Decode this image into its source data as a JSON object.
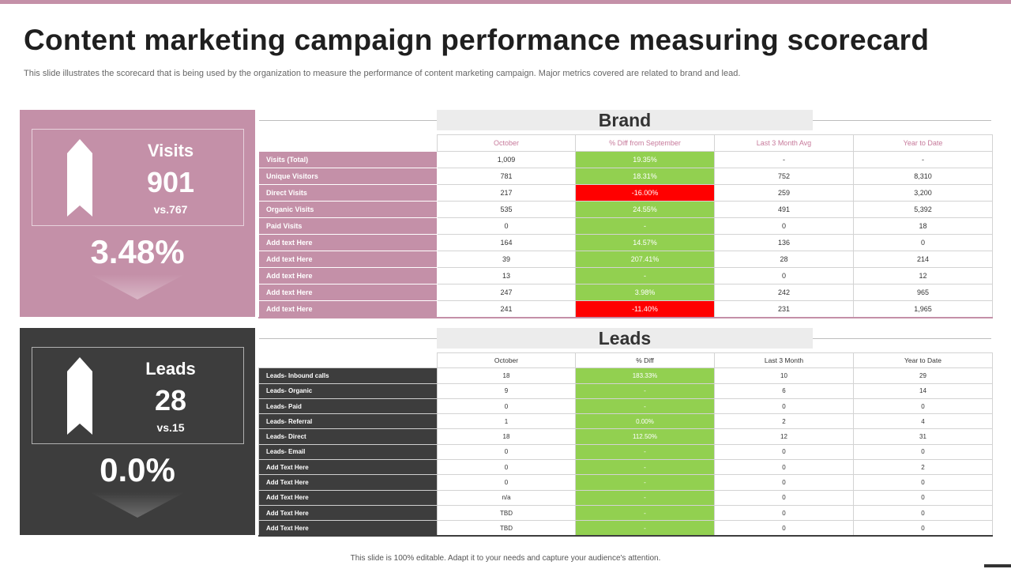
{
  "title": "Content marketing campaign performance measuring scorecard",
  "subtitle": "This slide illustrates the scorecard that is being used by the organization to measure the performance of content marketing campaign. Major metrics covered are related to brand and lead.",
  "footer": "This slide is 100% editable. Adapt it to your needs and capture your audience's attention.",
  "colors": {
    "brand_panel": "#c490a8",
    "leads_panel": "#3d3d3d",
    "positive": "#92d050",
    "negative": "#ff0000"
  },
  "brand_kpi": {
    "label": "Visits",
    "value": "901",
    "comparison": "vs.767",
    "change": "3.48%",
    "icon": "up-arrow-ribbon-icon"
  },
  "leads_kpi": {
    "label": "Leads",
    "value": "28",
    "comparison": "vs.15",
    "change": "0.0%",
    "icon": "up-arrow-ribbon-icon"
  },
  "brand": {
    "title": "Brand",
    "columns": [
      "October",
      "% Diff from September",
      "Last 3 Month Avg",
      "Year to Date"
    ],
    "rows": [
      {
        "label": "Visits (Total)",
        "october": "1,009",
        "diff": "19.35%",
        "status": "green",
        "avg": "-",
        "ytd": "-"
      },
      {
        "label": "Unique Visitors",
        "october": "781",
        "diff": "18.31%",
        "status": "green",
        "avg": "752",
        "ytd": "8,310"
      },
      {
        "label": "Direct Visits",
        "october": "217",
        "diff": "-16.00%",
        "status": "red",
        "avg": "259",
        "ytd": "3,200"
      },
      {
        "label": "Organic Visits",
        "october": "535",
        "diff": "24.55%",
        "status": "green",
        "avg": "491",
        "ytd": "5,392"
      },
      {
        "label": "Paid Visits",
        "october": "0",
        "diff": "-",
        "status": "green",
        "avg": "0",
        "ytd": "18"
      },
      {
        "label": "Add text Here",
        "october": "164",
        "diff": "14.57%",
        "status": "green",
        "avg": "136",
        "ytd": "0"
      },
      {
        "label": "Add text Here",
        "october": "39",
        "diff": "207.41%",
        "status": "green",
        "avg": "28",
        "ytd": "214"
      },
      {
        "label": "Add text Here",
        "october": "13",
        "diff": "-",
        "status": "green",
        "avg": "0",
        "ytd": "12"
      },
      {
        "label": "Add text Here",
        "october": "247",
        "diff": "3.98%",
        "status": "green",
        "avg": "242",
        "ytd": "965"
      },
      {
        "label": "Add text Here",
        "october": "241",
        "diff": "-11.40%",
        "status": "red",
        "avg": "231",
        "ytd": "1,965"
      }
    ]
  },
  "leads": {
    "title": "Leads",
    "columns": [
      "October",
      "% Diff",
      "Last 3 Month",
      "Year to Date"
    ],
    "rows": [
      {
        "label": "Leads- Inbound calls",
        "october": "18",
        "diff": "183.33%",
        "status": "green",
        "avg": "10",
        "ytd": "29"
      },
      {
        "label": "Leads- Organic",
        "october": "9",
        "diff": "-",
        "status": "green",
        "avg": "6",
        "ytd": "14"
      },
      {
        "label": "Leads- Paid",
        "october": "0",
        "diff": "-",
        "status": "green",
        "avg": "0",
        "ytd": "0"
      },
      {
        "label": "Leads- Referral",
        "october": "1",
        "diff": "0.00%",
        "status": "green",
        "avg": "2",
        "ytd": "4"
      },
      {
        "label": "Leads- Direct",
        "october": "18",
        "diff": "112.50%",
        "status": "green",
        "avg": "12",
        "ytd": "31"
      },
      {
        "label": "Leads- Email",
        "october": "0",
        "diff": "-",
        "status": "green",
        "avg": "0",
        "ytd": "0"
      },
      {
        "label": "Add Text Here",
        "october": "0",
        "diff": "-",
        "status": "green",
        "avg": "0",
        "ytd": "2"
      },
      {
        "label": "Add Text Here",
        "october": "0",
        "diff": "-",
        "status": "green",
        "avg": "0",
        "ytd": "0"
      },
      {
        "label": "Add Text Here",
        "october": "n/a",
        "diff": "-",
        "status": "green",
        "avg": "0",
        "ytd": "0"
      },
      {
        "label": "Add Text Here",
        "october": "TBD",
        "diff": "-",
        "status": "green",
        "avg": "0",
        "ytd": "0"
      },
      {
        "label": "Add Text Here",
        "october": "TBD",
        "diff": "-",
        "status": "green",
        "avg": "0",
        "ytd": "0"
      }
    ]
  }
}
